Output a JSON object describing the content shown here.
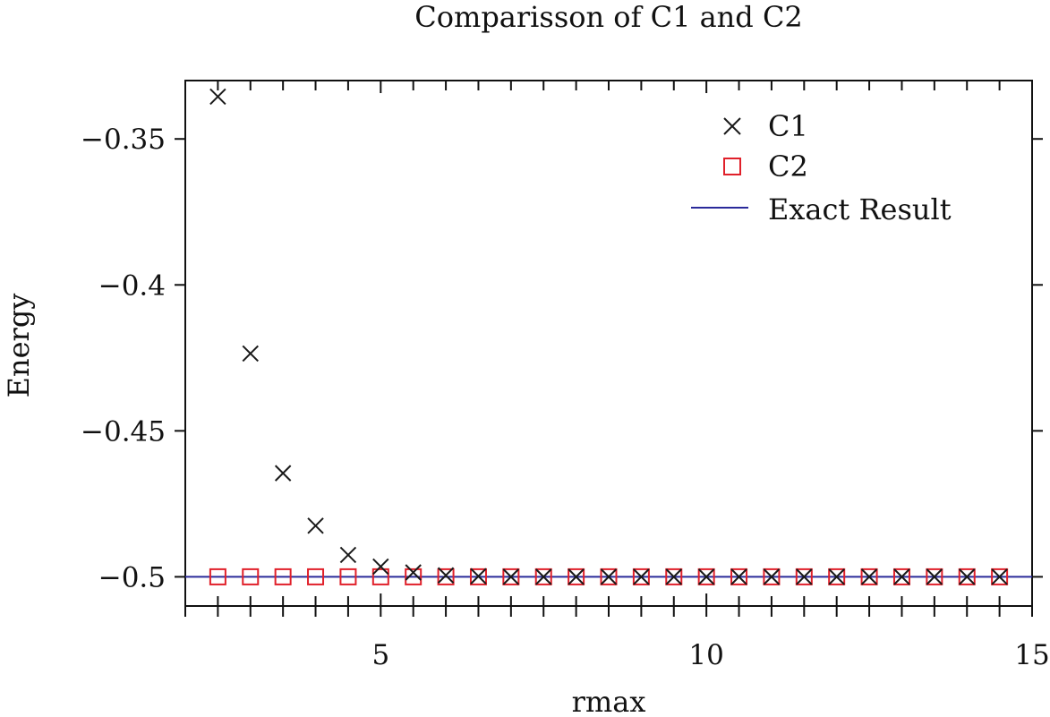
{
  "chart_data": {
    "type": "scatter",
    "title": "Comparisson of C1 and C2",
    "xlabel": "rmax",
    "ylabel": "Energy",
    "xlim": [
      2,
      15
    ],
    "ylim": [
      -0.51,
      -0.33
    ],
    "xticks": [
      5,
      10,
      15
    ],
    "xtick_labels": [
      "5",
      "10",
      "15"
    ],
    "xminor_ticks": [
      2,
      2.5,
      3,
      3.5,
      4,
      4.5,
      5,
      5.5,
      6,
      6.5,
      7,
      7.5,
      8,
      8.5,
      9,
      9.5,
      10,
      10.5,
      11,
      11.5,
      12,
      12.5,
      13,
      13.5,
      14,
      14.5,
      15
    ],
    "yticks": [
      -0.35,
      -0.4,
      -0.45,
      -0.5
    ],
    "ytick_labels": [
      "−0.35",
      "−0.4",
      "−0.45",
      "−0.5"
    ],
    "grid": false,
    "legend_position": "top-right",
    "series": [
      {
        "name": "C1",
        "marker": "x",
        "color": "#1a1a1a",
        "x": [
          2.5,
          3,
          3.5,
          4,
          4.5,
          5,
          5.5,
          6,
          6.5,
          7,
          7.5,
          8,
          8.5,
          9,
          9.5,
          10,
          10.5,
          11,
          11.5,
          12,
          12.5,
          13,
          13.5,
          14,
          14.5
        ],
        "y": [
          -0.3355,
          -0.4235,
          -0.4645,
          -0.4825,
          -0.4925,
          -0.4965,
          -0.4985,
          -0.4995,
          -0.4998,
          -0.5,
          -0.5,
          -0.5,
          -0.5,
          -0.5,
          -0.5,
          -0.5,
          -0.5,
          -0.5,
          -0.5,
          -0.5,
          -0.5,
          -0.5,
          -0.5,
          -0.5,
          -0.5
        ]
      },
      {
        "name": "C2",
        "marker": "square",
        "color": "#e0202a",
        "x": [
          2.5,
          3,
          3.5,
          4,
          4.5,
          5,
          5.5,
          6,
          6.5,
          7,
          7.5,
          8,
          8.5,
          9,
          9.5,
          10,
          10.5,
          11,
          11.5,
          12,
          12.5,
          13,
          13.5,
          14,
          14.5
        ],
        "y": [
          -0.5,
          -0.5,
          -0.5,
          -0.5,
          -0.5,
          -0.5,
          -0.5,
          -0.5,
          -0.5,
          -0.5,
          -0.5,
          -0.5,
          -0.5,
          -0.5,
          -0.5,
          -0.5,
          -0.5,
          -0.5,
          -0.5,
          -0.5,
          -0.5,
          -0.5,
          -0.5,
          -0.5,
          -0.5
        ]
      },
      {
        "name": "Exact Result",
        "marker": "line",
        "color": "#2a2a9a",
        "y": -0.5
      }
    ]
  }
}
